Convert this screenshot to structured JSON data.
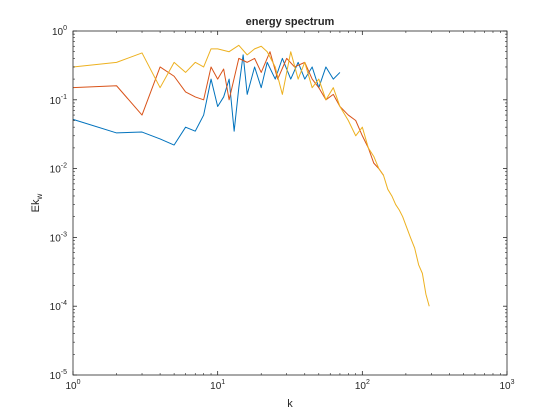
{
  "chart_data": {
    "type": "line",
    "title": "energy spectrum",
    "xlabel": "k",
    "ylabel": "Ek",
    "ylabel_subscript": "w",
    "xscale": "log",
    "yscale": "log",
    "xlim": [
      1,
      1000
    ],
    "ylim": [
      1e-05,
      1
    ],
    "grid": false,
    "legend": "none",
    "x_ticks": [
      {
        "value": 1,
        "base": "10",
        "exp": "0"
      },
      {
        "value": 10,
        "base": "10",
        "exp": "1"
      },
      {
        "value": 100,
        "base": "10",
        "exp": "2"
      },
      {
        "value": 1000,
        "base": "10",
        "exp": "3"
      }
    ],
    "y_ticks": [
      {
        "value": 1e-05,
        "base": "10",
        "exp": "-5"
      },
      {
        "value": 0.0001,
        "base": "10",
        "exp": "-4"
      },
      {
        "value": 0.001,
        "base": "10",
        "exp": "-3"
      },
      {
        "value": 0.01,
        "base": "10",
        "exp": "-2"
      },
      {
        "value": 0.1,
        "base": "10",
        "exp": "-1"
      },
      {
        "value": 1,
        "base": "10",
        "exp": "0"
      }
    ],
    "series": [
      {
        "color": "#0072BD",
        "x": [
          1,
          2,
          3,
          4,
          5,
          6,
          7,
          8,
          9,
          10,
          11,
          12,
          13,
          14,
          15,
          16,
          18,
          20,
          22,
          25,
          28,
          32,
          36,
          40,
          45,
          50,
          56,
          63,
          70
        ],
        "y": [
          0.052,
          0.033,
          0.034,
          0.027,
          0.022,
          0.04,
          0.035,
          0.06,
          0.2,
          0.08,
          0.11,
          0.2,
          0.035,
          0.15,
          0.45,
          0.12,
          0.3,
          0.15,
          0.35,
          0.2,
          0.4,
          0.2,
          0.35,
          0.2,
          0.3,
          0.15,
          0.3,
          0.2,
          0.25
        ]
      },
      {
        "color": "#D95319",
        "x": [
          1,
          2,
          3,
          4,
          5,
          6,
          7,
          8,
          9,
          10,
          11,
          12,
          14,
          16,
          18,
          20,
          23,
          26,
          30,
          34,
          40,
          45,
          50,
          56,
          63,
          70,
          80,
          90,
          100,
          110,
          120,
          130,
          140
        ],
        "y": [
          0.15,
          0.16,
          0.06,
          0.3,
          0.22,
          0.13,
          0.11,
          0.1,
          0.3,
          0.2,
          0.28,
          0.1,
          0.4,
          0.35,
          0.4,
          0.25,
          0.5,
          0.2,
          0.4,
          0.3,
          0.35,
          0.2,
          0.15,
          0.1,
          0.12,
          0.08,
          0.06,
          0.05,
          0.03,
          0.02,
          0.012,
          0.01,
          0.008
        ]
      },
      {
        "color": "#EDB120",
        "x": [
          1,
          2,
          3,
          4,
          5,
          6,
          7,
          8,
          9,
          10,
          12,
          14,
          16,
          18,
          20,
          22,
          25,
          28,
          32,
          36,
          40,
          45,
          50,
          56,
          63,
          70,
          80,
          90,
          100,
          110,
          120,
          130,
          140,
          150,
          160,
          170,
          180,
          190,
          200,
          215,
          230,
          245,
          260,
          275,
          290
        ],
        "y": [
          0.3,
          0.35,
          0.48,
          0.15,
          0.35,
          0.25,
          0.35,
          0.3,
          0.55,
          0.55,
          0.5,
          0.62,
          0.45,
          0.55,
          0.6,
          0.5,
          0.3,
          0.12,
          0.5,
          0.2,
          0.35,
          0.15,
          0.2,
          0.1,
          0.15,
          0.08,
          0.05,
          0.03,
          0.04,
          0.02,
          0.015,
          0.01,
          0.008,
          0.005,
          0.004,
          0.003,
          0.0025,
          0.002,
          0.0015,
          0.001,
          0.0007,
          0.0004,
          0.0003,
          0.00015,
          0.0001
        ]
      }
    ]
  }
}
